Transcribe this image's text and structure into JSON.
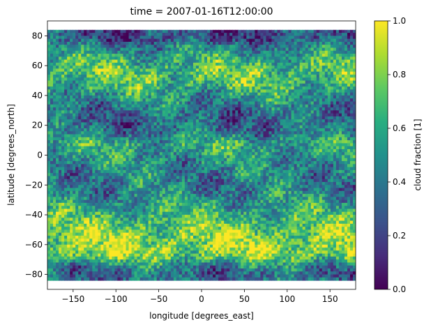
{
  "chart_data": {
    "type": "heatmap",
    "title": "time = 2007-01-16T12:00:00",
    "xlabel": "longitude [degrees_east]",
    "ylabel": "latitude [degrees_north]",
    "colorbar_label": "cloud fraction [1]",
    "xlim": [
      -180,
      180
    ],
    "ylim": [
      -90,
      90
    ],
    "data_lat_range": [
      -84,
      84
    ],
    "x_ticks": [
      -150,
      -100,
      -50,
      0,
      50,
      100,
      150
    ],
    "y_ticks": [
      -80,
      -60,
      -40,
      -20,
      0,
      20,
      40,
      60,
      80
    ],
    "colorbar_range": [
      0.0,
      1.0
    ],
    "colorbar_ticks": [
      "0.0",
      "0.2",
      "0.4",
      "0.6",
      "0.8",
      "1.0"
    ],
    "colormap": [
      "#440154",
      "#472d7b",
      "#3b528b",
      "#2c728e",
      "#21918c",
      "#28ae80",
      "#5ec962",
      "#addc30",
      "#fde725"
    ],
    "lat_band_mean_cloud_fraction": [
      [
        84,
        0.22
      ],
      [
        78,
        0.25
      ],
      [
        72,
        0.45
      ],
      [
        64,
        0.62
      ],
      [
        56,
        0.72
      ],
      [
        48,
        0.68
      ],
      [
        40,
        0.52
      ],
      [
        32,
        0.4
      ],
      [
        24,
        0.32
      ],
      [
        16,
        0.38
      ],
      [
        8,
        0.6
      ],
      [
        2,
        0.55
      ],
      [
        -6,
        0.48
      ],
      [
        -14,
        0.44
      ],
      [
        -22,
        0.42
      ],
      [
        -30,
        0.5
      ],
      [
        -38,
        0.62
      ],
      [
        -46,
        0.72
      ],
      [
        -54,
        0.82
      ],
      [
        -62,
        0.85
      ],
      [
        -68,
        0.8
      ],
      [
        -74,
        0.45
      ],
      [
        -80,
        0.32
      ],
      [
        -84,
        0.4
      ]
    ]
  }
}
